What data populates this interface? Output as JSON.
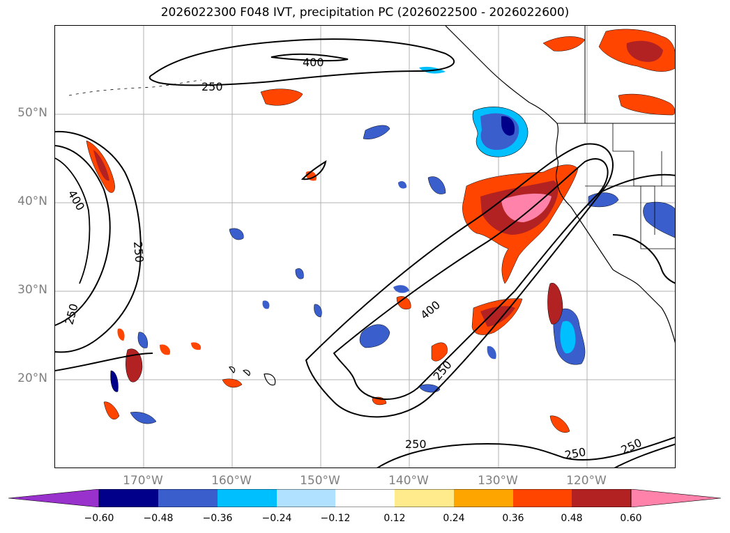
{
  "title": "2026022300 F048 IVT, precipitation PC (2026022500 - 2026022600)",
  "lat_labels": [
    "50°N",
    "40°N",
    "30°N",
    "20°N"
  ],
  "lon_labels": [
    "170°W",
    "160°W",
    "150°W",
    "140°W",
    "130°W",
    "120°W"
  ],
  "colorbar": {
    "ticks": [
      "−0.60",
      "−0.48",
      "−0.36",
      "−0.24",
      "−0.12",
      "0.12",
      "0.24",
      "0.36",
      "0.48",
      "0.60"
    ],
    "colors": [
      "#9932cc",
      "#00008b",
      "#3a5fcd",
      "#00bfff",
      "#b0e2ff",
      "#ffffff",
      "#ffeb8b",
      "#ffa500",
      "#ff4500",
      "#b22222",
      "#ff82ab"
    ]
  },
  "contour_labels": [
    "400",
    "250",
    "400",
    "250",
    "250",
    "400",
    "250",
    "250",
    "250",
    "250"
  ],
  "map_data": {
    "projection": "lat-lon",
    "lon_range": [
      -180,
      -110
    ],
    "lat_range": [
      10,
      60
    ],
    "ivt_contour_levels": [
      250,
      400
    ],
    "precip_pc_levels": [
      -0.6,
      -0.48,
      -0.36,
      -0.24,
      -0.12,
      0.12,
      0.24,
      0.36,
      0.48,
      0.6
    ],
    "gridlines": true
  }
}
